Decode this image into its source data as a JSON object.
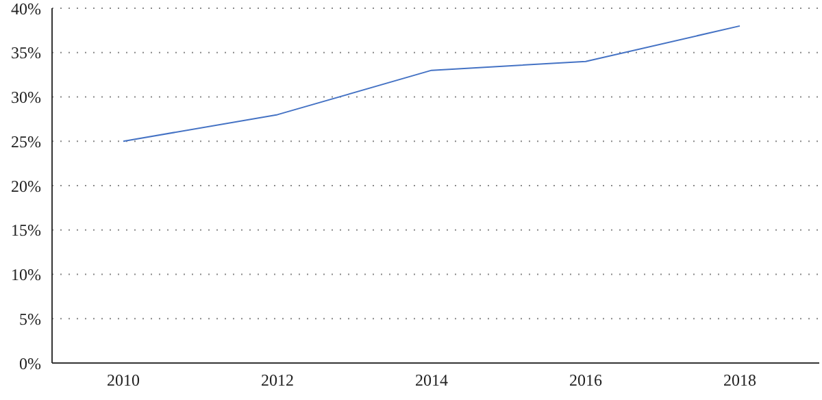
{
  "chart_data": {
    "type": "line",
    "categories": [
      "2010",
      "2012",
      "2014",
      "2016",
      "2018"
    ],
    "series": [
      {
        "color": "#4472c4",
        "values": [
          25,
          28,
          33,
          34,
          38
        ]
      }
    ],
    "ylim": [
      0,
      40
    ],
    "yticks": [
      {
        "value": 0,
        "label": "0%"
      },
      {
        "value": 5,
        "label": "5%"
      },
      {
        "value": 10,
        "label": "10%"
      },
      {
        "value": 15,
        "label": "15%"
      },
      {
        "value": 20,
        "label": "20%"
      },
      {
        "value": 25,
        "label": "25%"
      },
      {
        "value": 30,
        "label": "30%"
      },
      {
        "value": 35,
        "label": "35%"
      },
      {
        "value": 40,
        "label": "40%"
      }
    ],
    "grid": "y",
    "marker": "none",
    "line_style": "solid",
    "legend": false
  }
}
